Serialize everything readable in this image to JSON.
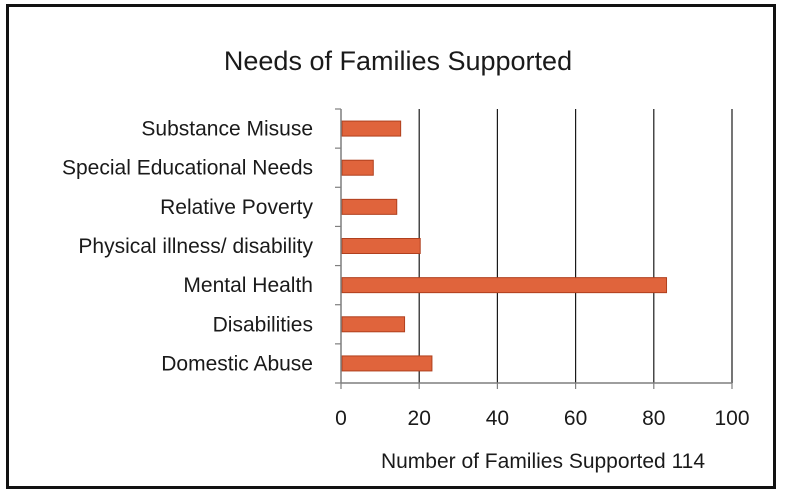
{
  "chart_data": {
    "type": "bar",
    "orientation": "horizontal",
    "title": "Needs of Families Supported",
    "xlabel": "Number of Families Supported 114",
    "ylabel": "",
    "categories": [
      "Substance Misuse",
      "Special Educational Needs",
      "Relative Poverty",
      "Physical illness/ disability",
      "Mental Health",
      "Disabilities",
      "Domestic Abuse"
    ],
    "values": [
      15,
      8,
      14,
      20,
      83,
      16,
      23
    ],
    "xlim": [
      0,
      100
    ],
    "xticks": [
      "0",
      "20",
      "40",
      "60",
      "80",
      "100"
    ],
    "grid": "vertical",
    "legend": "none",
    "colors": {
      "bar_fill": "#e0643c",
      "bar_stroke": "#b0401e",
      "gridline": "#1a1a1a",
      "axis": "#7f7f7f"
    }
  }
}
